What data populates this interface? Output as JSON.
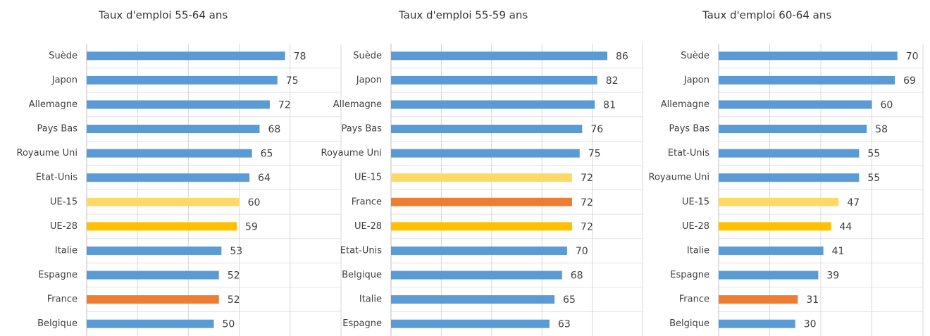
{
  "chart_data": [
    {
      "type": "barh",
      "title": "Taux d'emploi 55-64 ans",
      "categories": [
        "Suède",
        "Japon",
        "Allemagne",
        "Pays Bas",
        "Royaume Uni",
        "Etat-Unis",
        "UE-15",
        "UE-28",
        "Italie",
        "Espagne",
        "France",
        "Belgique"
      ],
      "values": [
        78,
        75,
        72,
        68,
        65,
        64,
        60,
        59,
        53,
        52,
        52,
        50
      ],
      "colors": [
        "#5b9bd5",
        "#5b9bd5",
        "#5b9bd5",
        "#5b9bd5",
        "#5b9bd5",
        "#5b9bd5",
        "#ffd966",
        "#ffc000",
        "#5b9bd5",
        "#5b9bd5",
        "#ed7d31",
        "#5b9bd5"
      ],
      "xlim": [
        0,
        100
      ],
      "xticks": [
        0,
        20,
        40,
        60,
        80,
        100
      ],
      "grid": true
    },
    {
      "type": "barh",
      "title": "Taux d'emploi 55-59 ans",
      "categories": [
        "Suède",
        "Japon",
        "Allemagne",
        "Pays Bas",
        "Royaume Uni",
        "UE-15",
        "France",
        "UE-28",
        "Etat-Unis",
        "Belgique",
        "Italie",
        "Espagne"
      ],
      "values": [
        86,
        82,
        81,
        76,
        75,
        72,
        72,
        72,
        70,
        68,
        65,
        63
      ],
      "colors": [
        "#5b9bd5",
        "#5b9bd5",
        "#5b9bd5",
        "#5b9bd5",
        "#5b9bd5",
        "#ffd966",
        "#ed7d31",
        "#ffc000",
        "#5b9bd5",
        "#5b9bd5",
        "#5b9bd5",
        "#5b9bd5"
      ],
      "xlim": [
        0,
        100
      ],
      "xticks": [
        0,
        20,
        40,
        60,
        80,
        100
      ],
      "grid": true
    },
    {
      "type": "barh",
      "title": "Taux d'emploi 60-64 ans",
      "categories": [
        "Suède",
        "Japon",
        "Allemagne",
        "Pays Bas",
        "Etat-Unis",
        "Royaume Uni",
        "UE-15",
        "UE-28",
        "Italie",
        "Espagne",
        "France",
        "Belgique"
      ],
      "values": [
        70,
        69,
        60,
        58,
        55,
        55,
        47,
        44,
        41,
        39,
        31,
        30
      ],
      "colors": [
        "#5b9bd5",
        "#5b9bd5",
        "#5b9bd5",
        "#5b9bd5",
        "#5b9bd5",
        "#5b9bd5",
        "#ffd966",
        "#ffc000",
        "#5b9bd5",
        "#5b9bd5",
        "#ed7d31",
        "#5b9bd5"
      ],
      "xlim": [
        0,
        80
      ],
      "xticks": [
        0,
        20,
        40,
        60,
        80
      ],
      "grid": true
    }
  ]
}
